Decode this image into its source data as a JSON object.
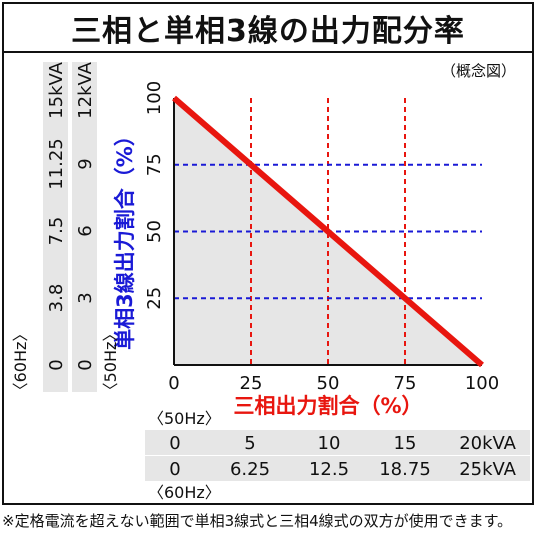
{
  "title": "三相と単相3線の出力配分率",
  "note": "（概念図）",
  "footnote": "※定格電流を超えない範囲で単相3線式と三相4線式の双方が使用できます。",
  "chart_data": {
    "type": "line",
    "title": "三相と単相3線の出力配分率",
    "xlabel": "三相出力割合（%）",
    "ylabel": "単相3線出力割合（%）",
    "xlim": [
      0,
      100
    ],
    "ylim": [
      0,
      100
    ],
    "xticks": [
      "0",
      "25",
      "50",
      "75",
      "100"
    ],
    "yticks": [
      "25",
      "50",
      "75",
      "100"
    ],
    "series": [
      {
        "x": [
          0,
          100
        ],
        "y": [
          100,
          0
        ],
        "color": "#e8160f"
      }
    ],
    "grid": {
      "vertical_x": [
        25,
        50,
        75
      ],
      "horizontal_y": [
        25,
        50,
        75
      ],
      "vertical_color": "#e8160f",
      "horizontal_color": "#1a1ad6"
    },
    "fill_color": "#e6e6e6",
    "bottom_table": {
      "rows": [
        {
          "label": "〈50Hz〉",
          "values": [
            "0",
            "5",
            "10",
            "15",
            "20kVA"
          ]
        },
        {
          "label": "〈60Hz〉",
          "values": [
            "0",
            "6.25",
            "12.5",
            "18.75",
            "25kVA"
          ]
        }
      ]
    },
    "left_table": {
      "rows": [
        {
          "label": "〈60Hz〉",
          "values": [
            "0",
            "3.8",
            "7.5",
            "11.25",
            "15kVA"
          ]
        },
        {
          "label": "〈50Hz〉",
          "values": [
            "0",
            "3",
            "6",
            "9",
            "12kVA"
          ]
        }
      ]
    }
  }
}
